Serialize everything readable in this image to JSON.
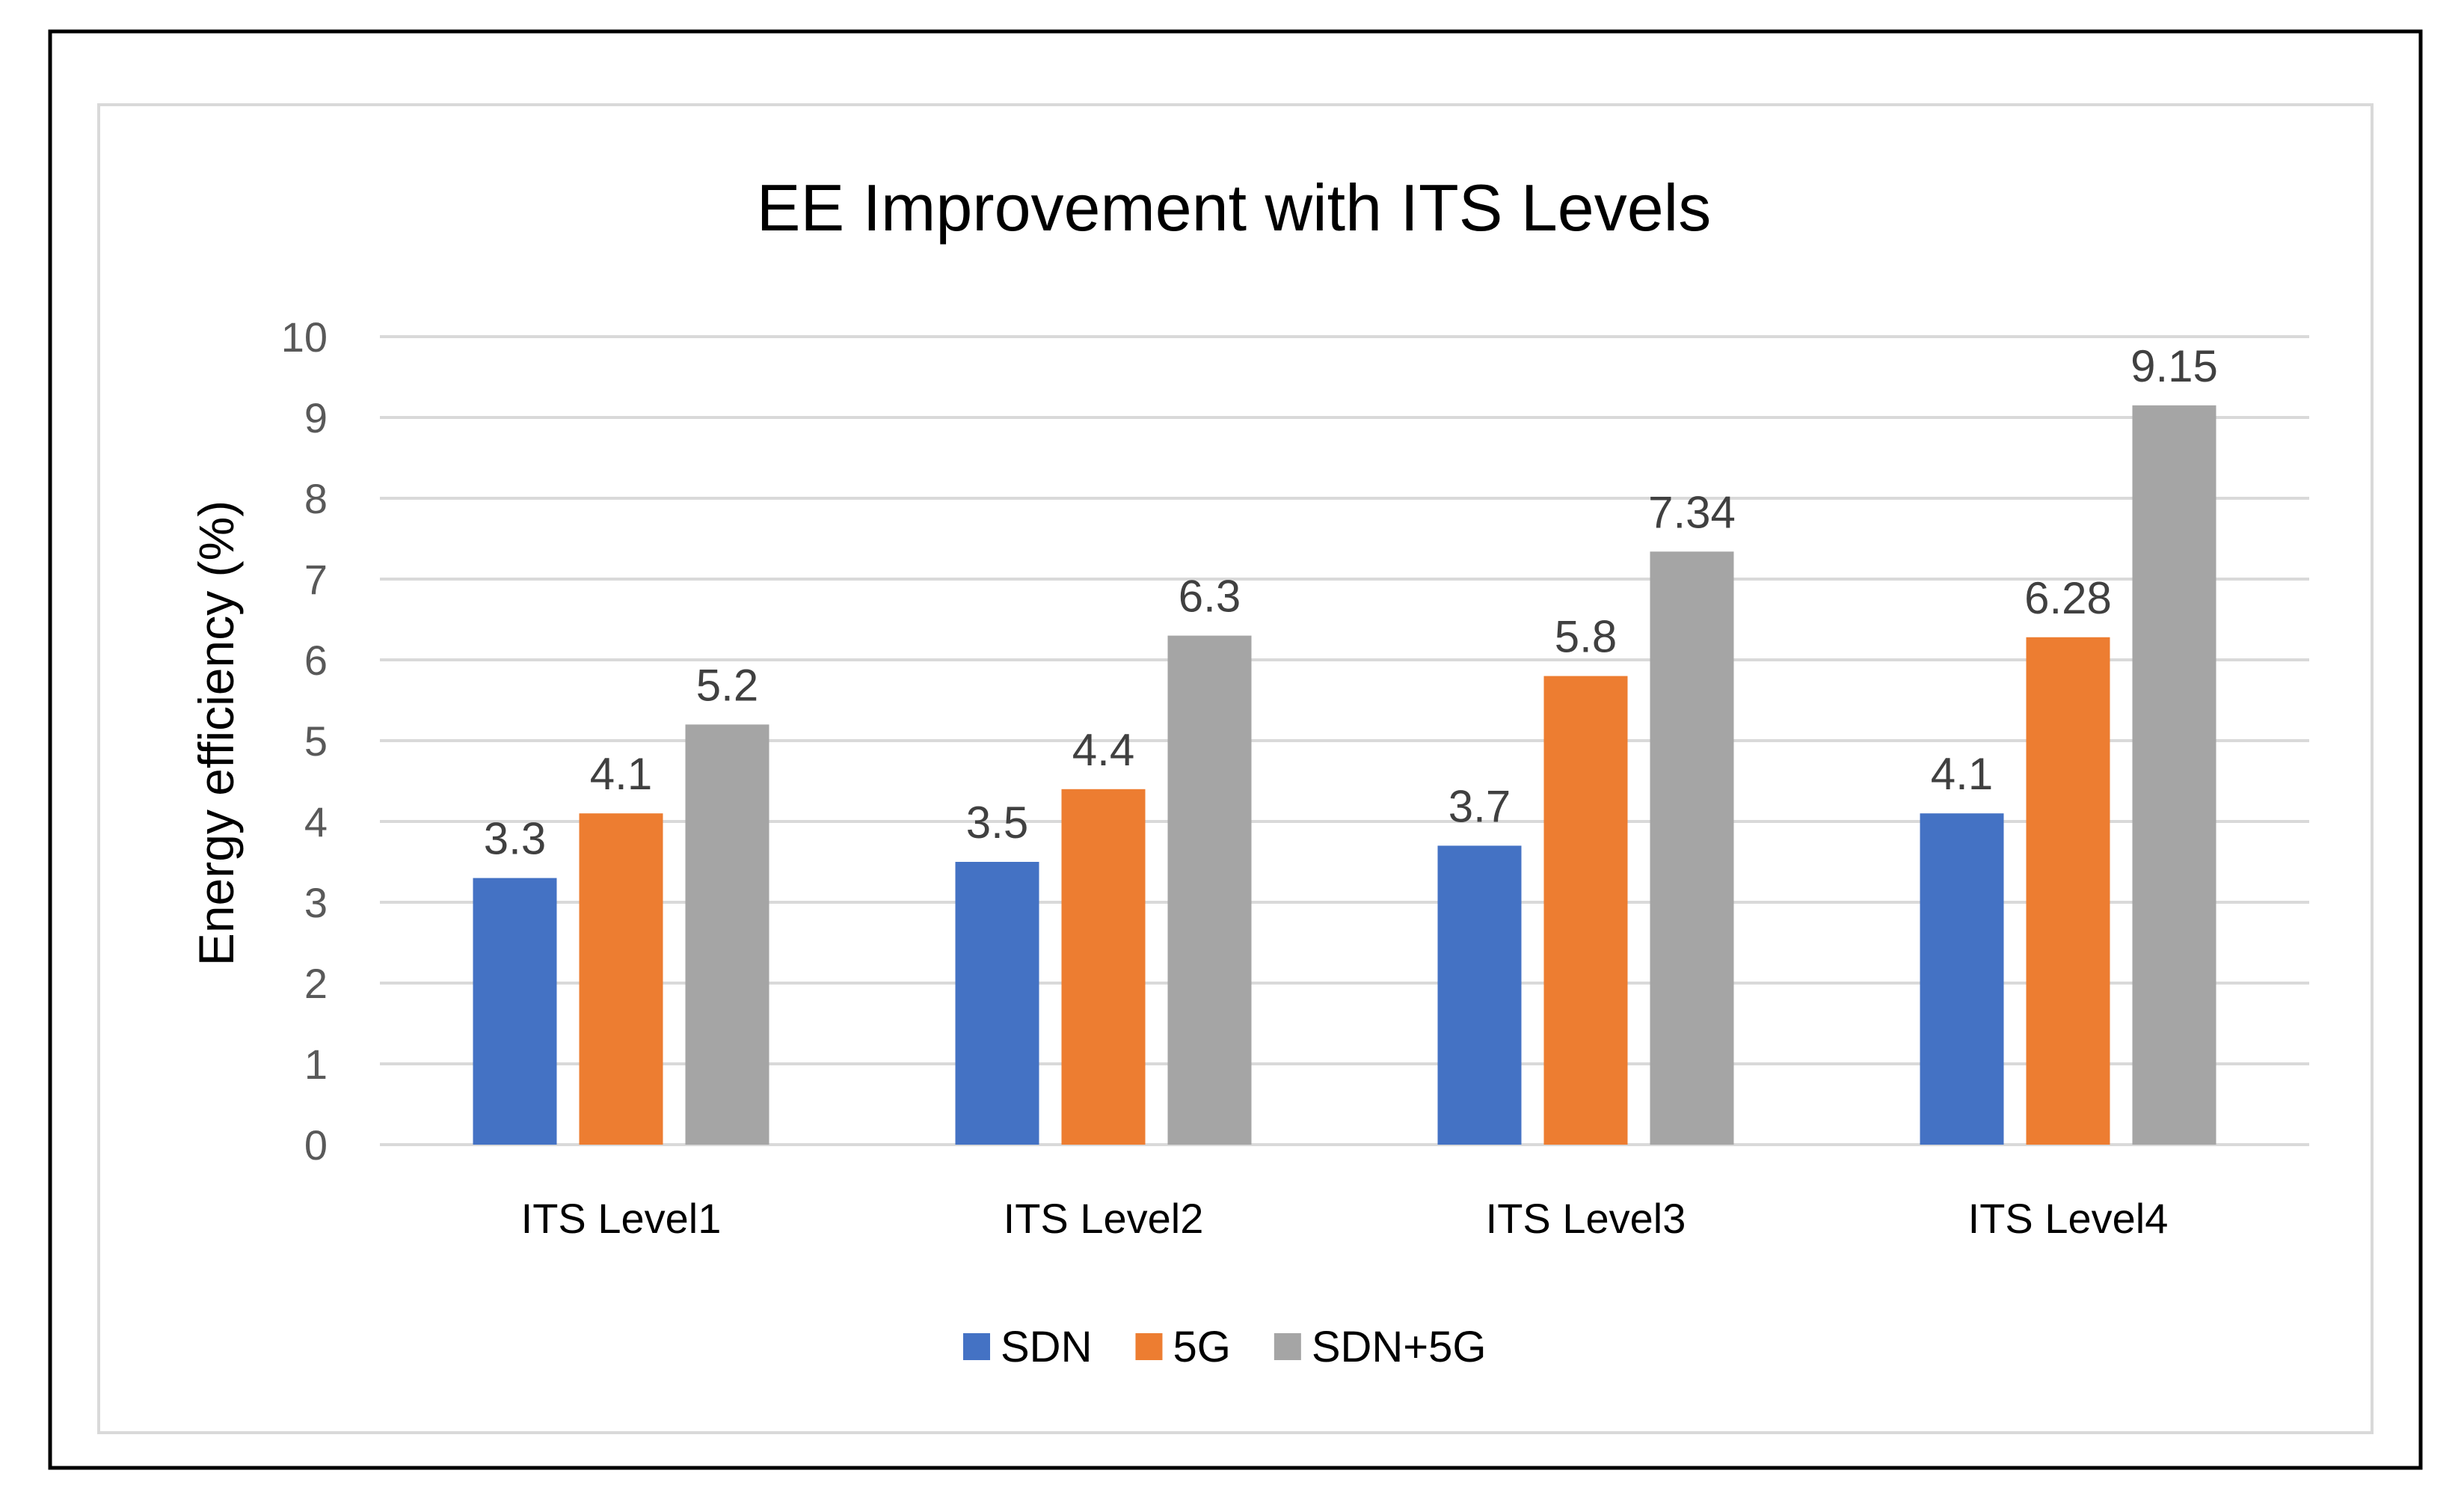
{
  "chart_data": {
    "type": "bar",
    "title": "EE Improvement with ITS Levels",
    "xlabel": "",
    "ylabel": "Energy efficiency (%)",
    "ylim": [
      0,
      10
    ],
    "yticks": [
      "0",
      "1",
      "2",
      "3",
      "4",
      "5",
      "6",
      "7",
      "8",
      "9",
      "10"
    ],
    "grid": true,
    "legend_position": "bottom-center",
    "categories": [
      "ITS Level1",
      "ITS Level2",
      "ITS Level3",
      "ITS Level4"
    ],
    "series": [
      {
        "name": "SDN",
        "color": "#4472C4",
        "values": [
          3.3,
          3.5,
          3.7,
          4.1
        ],
        "labels": [
          "3.3",
          "3.5",
          "3.7",
          "4.1"
        ]
      },
      {
        "name": "5G",
        "color": "#ED7D31",
        "values": [
          4.1,
          4.4,
          5.8,
          6.28
        ],
        "labels": [
          "4.1",
          "4.4",
          "5.8",
          "6.28"
        ]
      },
      {
        "name": "SDN+5G",
        "color": "#A5A5A5",
        "values": [
          5.2,
          6.3,
          7.34,
          9.15
        ],
        "labels": [
          "5.2",
          "6.3",
          "7.34",
          "9.15"
        ]
      }
    ]
  }
}
